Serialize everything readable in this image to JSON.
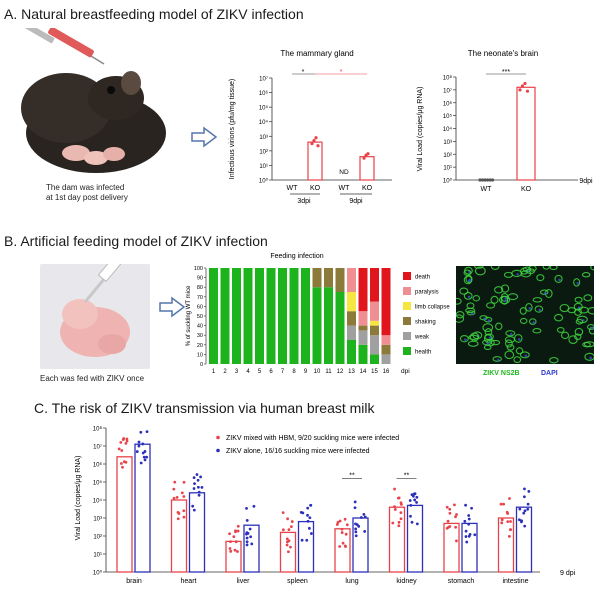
{
  "sections": {
    "a": "A.  Natural breastfeeding model of ZIKV infection",
    "b": "B.  Artificial feeding model of ZIKV infection",
    "c": "C.  The risk of ZIKV transmission via human breast milk"
  },
  "panel_a": {
    "caption_line1": "The dam was infected",
    "caption_line2": "at 1st day post delivery"
  },
  "panel_b": {
    "caption": "Each was fed with ZIKV once",
    "micro_label_green": "ZIKV NS2B",
    "micro_label_blue": "DAPI"
  },
  "colors": {
    "ko_bar": "#e8434a",
    "health": "#1db31d",
    "weak": "#a0a0a0",
    "shaking": "#8c7a3a",
    "limb_collapse": "#f5e642",
    "paralysis": "#f08f92",
    "death": "#e0161c",
    "hbm_series": "#e8434a",
    "alone_series": "#2c2fb8",
    "arrow": "#5577aa"
  },
  "chart_data": [
    {
      "type": "bar",
      "title": "The mammary gland",
      "ylabel": "Infectious virions (pfu/mg tissue)",
      "log_scale": true,
      "ylim_exp": [
        0,
        7
      ],
      "yticks": [
        "10⁰",
        "10¹",
        "10²",
        "10³",
        "10⁴",
        "10⁵",
        "10⁶",
        "10⁷"
      ],
      "categories": [
        "WT",
        "KO",
        "WT",
        "KO"
      ],
      "groups": [
        "3dpi",
        "9dpi"
      ],
      "values_log10": [
        null,
        2.6,
        null,
        1.6
      ],
      "points_log10": [
        [],
        [
          2.5,
          2.7,
          2.9,
          2.35
        ],
        [],
        [
          1.5,
          1.7,
          1.8
        ]
      ],
      "nd_label": "ND",
      "significance": [
        "*",
        "*"
      ]
    },
    {
      "type": "bar",
      "title": "The neonate's  brain",
      "ylabel": "Viral Load (copies/μg RNA)",
      "log_scale": true,
      "ylim_exp": [
        0,
        8
      ],
      "yticks": [
        "10⁰",
        "10¹",
        "10²",
        "10³",
        "10⁴",
        "10⁵",
        "10⁶",
        "10⁷",
        "10⁸"
      ],
      "categories": [
        "WT",
        "KO"
      ],
      "values_log10": [
        0,
        7.2
      ],
      "points_log10": [
        [
          0,
          0,
          0,
          0,
          0,
          0
        ],
        [
          7.0,
          7.3,
          7.5,
          6.9
        ]
      ],
      "significance": [
        "***"
      ],
      "tail_label": "9dpi"
    },
    {
      "type": "bar",
      "title": "Feeding infection",
      "ylabel": "% of suckling WT mice",
      "stacked": true,
      "ylim": [
        0,
        100
      ],
      "yticks": [
        "0",
        "10",
        "20",
        "30",
        "40",
        "50",
        "60",
        "70",
        "80",
        "90",
        "100"
      ],
      "categories": [
        "1",
        "2",
        "3",
        "4",
        "5",
        "6",
        "7",
        "8",
        "9",
        "10",
        "11",
        "12",
        "13",
        "14",
        "15",
        "16"
      ],
      "xlabel": "dpi",
      "series": [
        {
          "name": "health",
          "values": [
            100,
            100,
            100,
            100,
            100,
            100,
            100,
            100,
            100,
            80,
            80,
            75,
            25,
            20,
            10,
            0
          ]
        },
        {
          "name": "weak",
          "values": [
            0,
            0,
            0,
            0,
            0,
            0,
            0,
            0,
            0,
            0,
            0,
            0,
            15,
            15,
            20,
            10
          ]
        },
        {
          "name": "shaking",
          "values": [
            0,
            0,
            0,
            0,
            0,
            0,
            0,
            0,
            0,
            20,
            20,
            25,
            15,
            5,
            10,
            10
          ]
        },
        {
          "name": "limb collapse",
          "values": [
            0,
            0,
            0,
            0,
            0,
            0,
            0,
            0,
            0,
            0,
            0,
            0,
            20,
            0,
            5,
            0
          ]
        },
        {
          "name": "paralysis",
          "values": [
            0,
            0,
            0,
            0,
            0,
            0,
            0,
            0,
            0,
            0,
            0,
            0,
            25,
            15,
            20,
            10
          ]
        },
        {
          "name": "death",
          "values": [
            0,
            0,
            0,
            0,
            0,
            0,
            0,
            0,
            0,
            0,
            0,
            0,
            0,
            45,
            35,
            70
          ]
        }
      ],
      "legend_order": [
        "death",
        "paralysis",
        "limb collapse",
        "shaking",
        "weak",
        "health"
      ]
    },
    {
      "type": "bar",
      "ylabel": "Viral Load (copies/μg RNA)",
      "log_scale": true,
      "ylim_exp": [
        0,
        8
      ],
      "yticks": [
        "10⁰",
        "10¹",
        "10²",
        "10³",
        "10⁴",
        "10⁵",
        "10⁶",
        "10⁷",
        "10⁸"
      ],
      "categories": [
        "brain",
        "heart",
        "liver",
        "spleen",
        "lung",
        "kidney",
        "stomach",
        "intestine"
      ],
      "xlabel_tail": "9 dpi",
      "series": [
        {
          "name": "ZIKV mixed with HBM, 9/20 suckling mice were infected",
          "values_log10": [
            6.4,
            4.0,
            1.7,
            2.2,
            2.4,
            3.6,
            2.7,
            3.0
          ]
        },
        {
          "name": "ZIKV alone, 16/16 suckling mice were infected",
          "values_log10": [
            7.1,
            4.4,
            2.6,
            2.8,
            3.0,
            3.7,
            2.7,
            3.6
          ]
        }
      ],
      "significance": [
        {
          "category": "lung",
          "label": "**"
        },
        {
          "category": "kidney",
          "label": "**"
        }
      ]
    }
  ]
}
